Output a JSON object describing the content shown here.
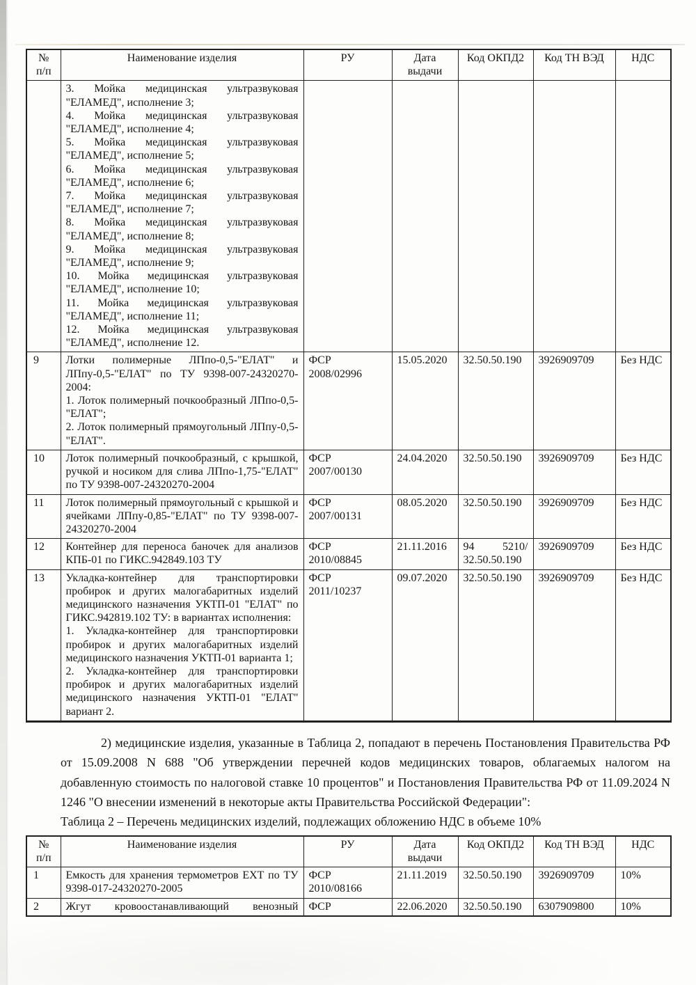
{
  "colors": {
    "paper": "#fdfdfb",
    "ink": "#161616",
    "table_border": "#212121"
  },
  "text": {
    "paragraph": "2) медицинские изделия, указанные в Таблица 2, попадают в перечень Постановления Правительства РФ от 15.09.2008 N 688 \"Об утверждении перечней кодов медицинских товаров, облагаемых налогом на добавленную стоимость по налоговой ставке 10 процентов\" и Постановления Правительства РФ от 11.09.2024 N 1246 \"О внесении изменений в некоторые акты Правительства Российской Федерации\":",
    "table2_caption": "Таблица 2 – Перечень медицинских изделий, подлежащих обложению НДС в объеме 10%"
  },
  "table1": {
    "columns": [
      {
        "key": "num",
        "label_lines": [
          "№",
          "п/п"
        ]
      },
      {
        "key": "name",
        "label_lines": [
          "Наименование изделия"
        ]
      },
      {
        "key": "ru",
        "label_lines": [
          "РУ"
        ]
      },
      {
        "key": "date",
        "label_lines": [
          "Дата",
          "выдачи"
        ]
      },
      {
        "key": "okpd2",
        "label_lines": [
          "Код ОКПД2"
        ]
      },
      {
        "key": "tnved",
        "label_lines": [
          "Код ТН ВЭД"
        ]
      },
      {
        "key": "nds",
        "label_lines": [
          "НДС"
        ]
      }
    ],
    "rows": [
      {
        "cells": {
          "num": "",
          "name": [
            "3. Мойка медицинская ультразвуковая \"ЕЛАМЕД\", исполнение 3;",
            "4. Мойка медицинская ультразвуковая \"ЕЛАМЕД\", исполнение 4;",
            "5. Мойка медицинская ультразвуковая \"ЕЛАМЕД\", исполнение 5;",
            "6. Мойка медицинская ультразвуковая \"ЕЛАМЕД\", исполнение 6;",
            "7. Мойка медицинская ультразвуковая \"ЕЛАМЕД\", исполнение 7;",
            "8. Мойка медицинская ультразвуковая \"ЕЛАМЕД\", исполнение 8;",
            "9. Мойка медицинская ультразвуковая \"ЕЛАМЕД\", исполнение 9;",
            "10. Мойка медицинская ультразвуковая \"ЕЛАМЕД\", исполнение 10;",
            "11. Мойка медицинская ультразвуковая \"ЕЛАМЕД\", исполнение 11;",
            "12. Мойка медицинская ультразвуковая \"ЕЛАМЕД\", исполнение 12."
          ],
          "ru": "",
          "date": "",
          "okpd2": "",
          "tnved": "",
          "nds": ""
        }
      },
      {
        "cells": {
          "num": "9",
          "name": [
            "Лотки полимерные ЛПпо-0,5-\"ЕЛАТ\" и ЛПпу-0,5-\"ЕЛАТ\" по ТУ 9398-007-24320270-2004:",
            "1. Лоток полимерный почкообразный ЛПпо-0,5-\"ЕЛАТ\";",
            "2. Лоток полимерный прямоугольный ЛПпу-0,5-\"ЕЛАТ\"."
          ],
          "ru": [
            "ФСР",
            "2008/02996"
          ],
          "date": "15.05.2020",
          "okpd2": "32.50.50.190",
          "tnved": "3926909709",
          "nds": "Без НДС"
        }
      },
      {
        "cells": {
          "num": "10",
          "name": [
            "Лоток полимерный почкообразный, с крышкой, ручкой и носиком для слива ЛПпо-1,75-\"ЕЛАТ\" по ТУ 9398-007-24320270-2004"
          ],
          "ru": [
            "ФСР",
            "2007/00130"
          ],
          "date": "24.04.2020",
          "okpd2": "32.50.50.190",
          "tnved": "3926909709",
          "nds": "Без НДС"
        }
      },
      {
        "cells": {
          "num": "11",
          "name": [
            "Лоток полимерный прямоугольный с крышкой и ячейками ЛПпу-0,85-\"ЕЛАТ\" по ТУ 9398-007-24320270-2004"
          ],
          "ru": [
            "ФСР",
            "2007/00131"
          ],
          "date": "08.05.2020",
          "okpd2": "32.50.50.190",
          "tnved": "3926909709",
          "nds": "Без НДС"
        }
      },
      {
        "cells": {
          "num": "12",
          "name": [
            "Контейнер для переноса баночек для анализов КПБ-01 по ГИКС.942849.103 ТУ"
          ],
          "ru": [
            "ФСР",
            "2010/08845"
          ],
          "date": "21.11.2016",
          "okpd2": {
            "lines": [
              "94 5210/",
              "32.50.50.190"
            ],
            "jlast": true
          },
          "tnved": "3926909709",
          "nds": "Без НДС"
        }
      },
      {
        "cells": {
          "num": "13",
          "name": [
            "Укладка-контейнер для транспортировки пробирок и других малогабаритных изделий медицинского назначения УКТП-01 \"ЕЛАТ\" по ГИКС.942819.102 ТУ: в вариантах исполнения:",
            "1. Укладка-контейнер для транспортировки пробирок и других малогабаритных изделий медицинского назначения УКТП-01 варианта 1;",
            "2. Укладка-контейнер для транспортировки пробирок и других малогабаритных изделий медицинского назначения УКТП-01 \"ЕЛАТ\" вариант 2."
          ],
          "ru": [
            "ФСР",
            "2011/10237"
          ],
          "date": "09.07.2020",
          "okpd2": "32.50.50.190",
          "tnved": "3926909709",
          "nds": "Без НДС"
        }
      }
    ]
  },
  "table2": {
    "columns": [
      {
        "key": "num",
        "label_lines": [
          "№",
          "п/п"
        ]
      },
      {
        "key": "name",
        "label_lines": [
          "Наименование изделия"
        ]
      },
      {
        "key": "ru",
        "label_lines": [
          "РУ"
        ]
      },
      {
        "key": "date",
        "label_lines": [
          "Дата",
          "выдачи"
        ]
      },
      {
        "key": "okpd2",
        "label_lines": [
          "Код ОКПД2"
        ]
      },
      {
        "key": "tnved",
        "label_lines": [
          "Код ТН ВЭД"
        ]
      },
      {
        "key": "nds",
        "label_lines": [
          "НДС"
        ]
      }
    ],
    "rows": [
      {
        "cells": {
          "num": "1",
          "name": [
            "Емкость для хранения термометров ЕХТ по ТУ 9398-017-24320270-2005"
          ],
          "ru": [
            "ФСР",
            "2010/08166"
          ],
          "date": "21.11.2019",
          "okpd2": "32.50.50.190",
          "tnved": "3926909709",
          "nds": "10%"
        }
      },
      {
        "cells": {
          "num": "2",
          "name": {
            "lines": [
              "Жгут кровоостанавливающий венозный"
            ],
            "jlast": true
          },
          "ru": [
            "ФСР"
          ],
          "date": "22.06.2020",
          "okpd2": "32.50.50.190",
          "tnved": "6307909800",
          "nds": "10%"
        }
      }
    ]
  }
}
